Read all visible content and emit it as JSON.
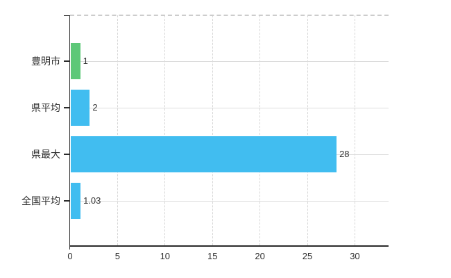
{
  "chart_data": {
    "type": "bar",
    "orientation": "horizontal",
    "title": "",
    "categories": [
      "豊明市",
      "県平均",
      "県最大",
      "全国平均"
    ],
    "values": [
      1,
      2,
      28,
      1.03
    ],
    "value_labels": [
      "1",
      "2",
      "28",
      "1.03"
    ],
    "bar_colors": [
      "#5dc878",
      "#41bdf0",
      "#41bdf0",
      "#41bdf0"
    ],
    "x_ticks": [
      0,
      5,
      10,
      15,
      20,
      25,
      30
    ],
    "x_tick_labels": [
      "0",
      "5",
      "10",
      "15",
      "20",
      "25",
      "30"
    ],
    "xlim": [
      0,
      33.55
    ],
    "grid": true,
    "legend": false
  },
  "colors": {
    "bar_green": "#5dc878",
    "bar_blue": "#41bdf0",
    "axis": "#2b2b2b",
    "grid_horizontal": "#dcdcdc",
    "grid_vertical": "#d6d6d6",
    "top_border": "#cccccc",
    "text": "#333333",
    "background": "#ffffff"
  }
}
